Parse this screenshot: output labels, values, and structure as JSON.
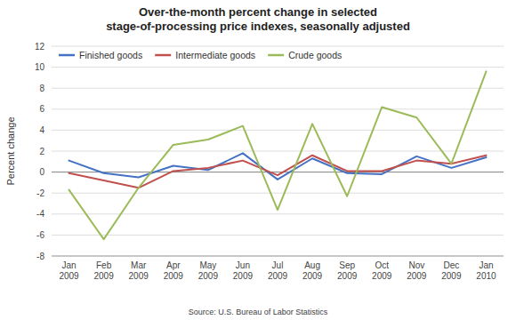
{
  "chart_data": {
    "type": "line",
    "title": "Over-the-month percent change in selected\nstage-of-processing price indexes, seasonally adjusted",
    "y_label": "Percent change",
    "annotations": [
      "Source: U.S. Bureau of Labor Statistics"
    ],
    "categories": [
      "Jan\n2009",
      "Feb\n2009",
      "Mar\n2009",
      "Apr\n2009",
      "May\n2009",
      "Jun\n2009",
      "Jul\n2009",
      "Aug\n2009",
      "Sep\n2009",
      "Oct\n2009",
      "Nov\n2009",
      "Dec\n2009",
      "Jan\n2010"
    ],
    "series": [
      {
        "name": "Finished goods",
        "color": "#4472C4",
        "values": [
          1.1,
          -0.1,
          -0.5,
          0.6,
          0.2,
          1.8,
          -0.7,
          1.3,
          -0.1,
          -0.2,
          1.5,
          0.4,
          1.4
        ]
      },
      {
        "name": "Intermediate goods",
        "color": "#C0504D",
        "values": [
          -0.1,
          -0.8,
          -1.5,
          0.1,
          0.4,
          1.1,
          -0.3,
          1.6,
          0.1,
          0.1,
          1.1,
          0.8,
          1.6
        ]
      },
      {
        "name": "Crude goods",
        "color": "#9BBB59",
        "values": [
          -1.7,
          -6.4,
          -1.5,
          2.6,
          3.1,
          4.4,
          -3.6,
          4.6,
          -2.3,
          6.2,
          5.2,
          0.8,
          9.6
        ]
      }
    ],
    "ylim": [
      -8,
      12
    ],
    "yticks": [
      -8,
      -6,
      -4,
      -2,
      0,
      2,
      4,
      6,
      8,
      10,
      12
    ],
    "grid": true,
    "legend": "upper left"
  }
}
